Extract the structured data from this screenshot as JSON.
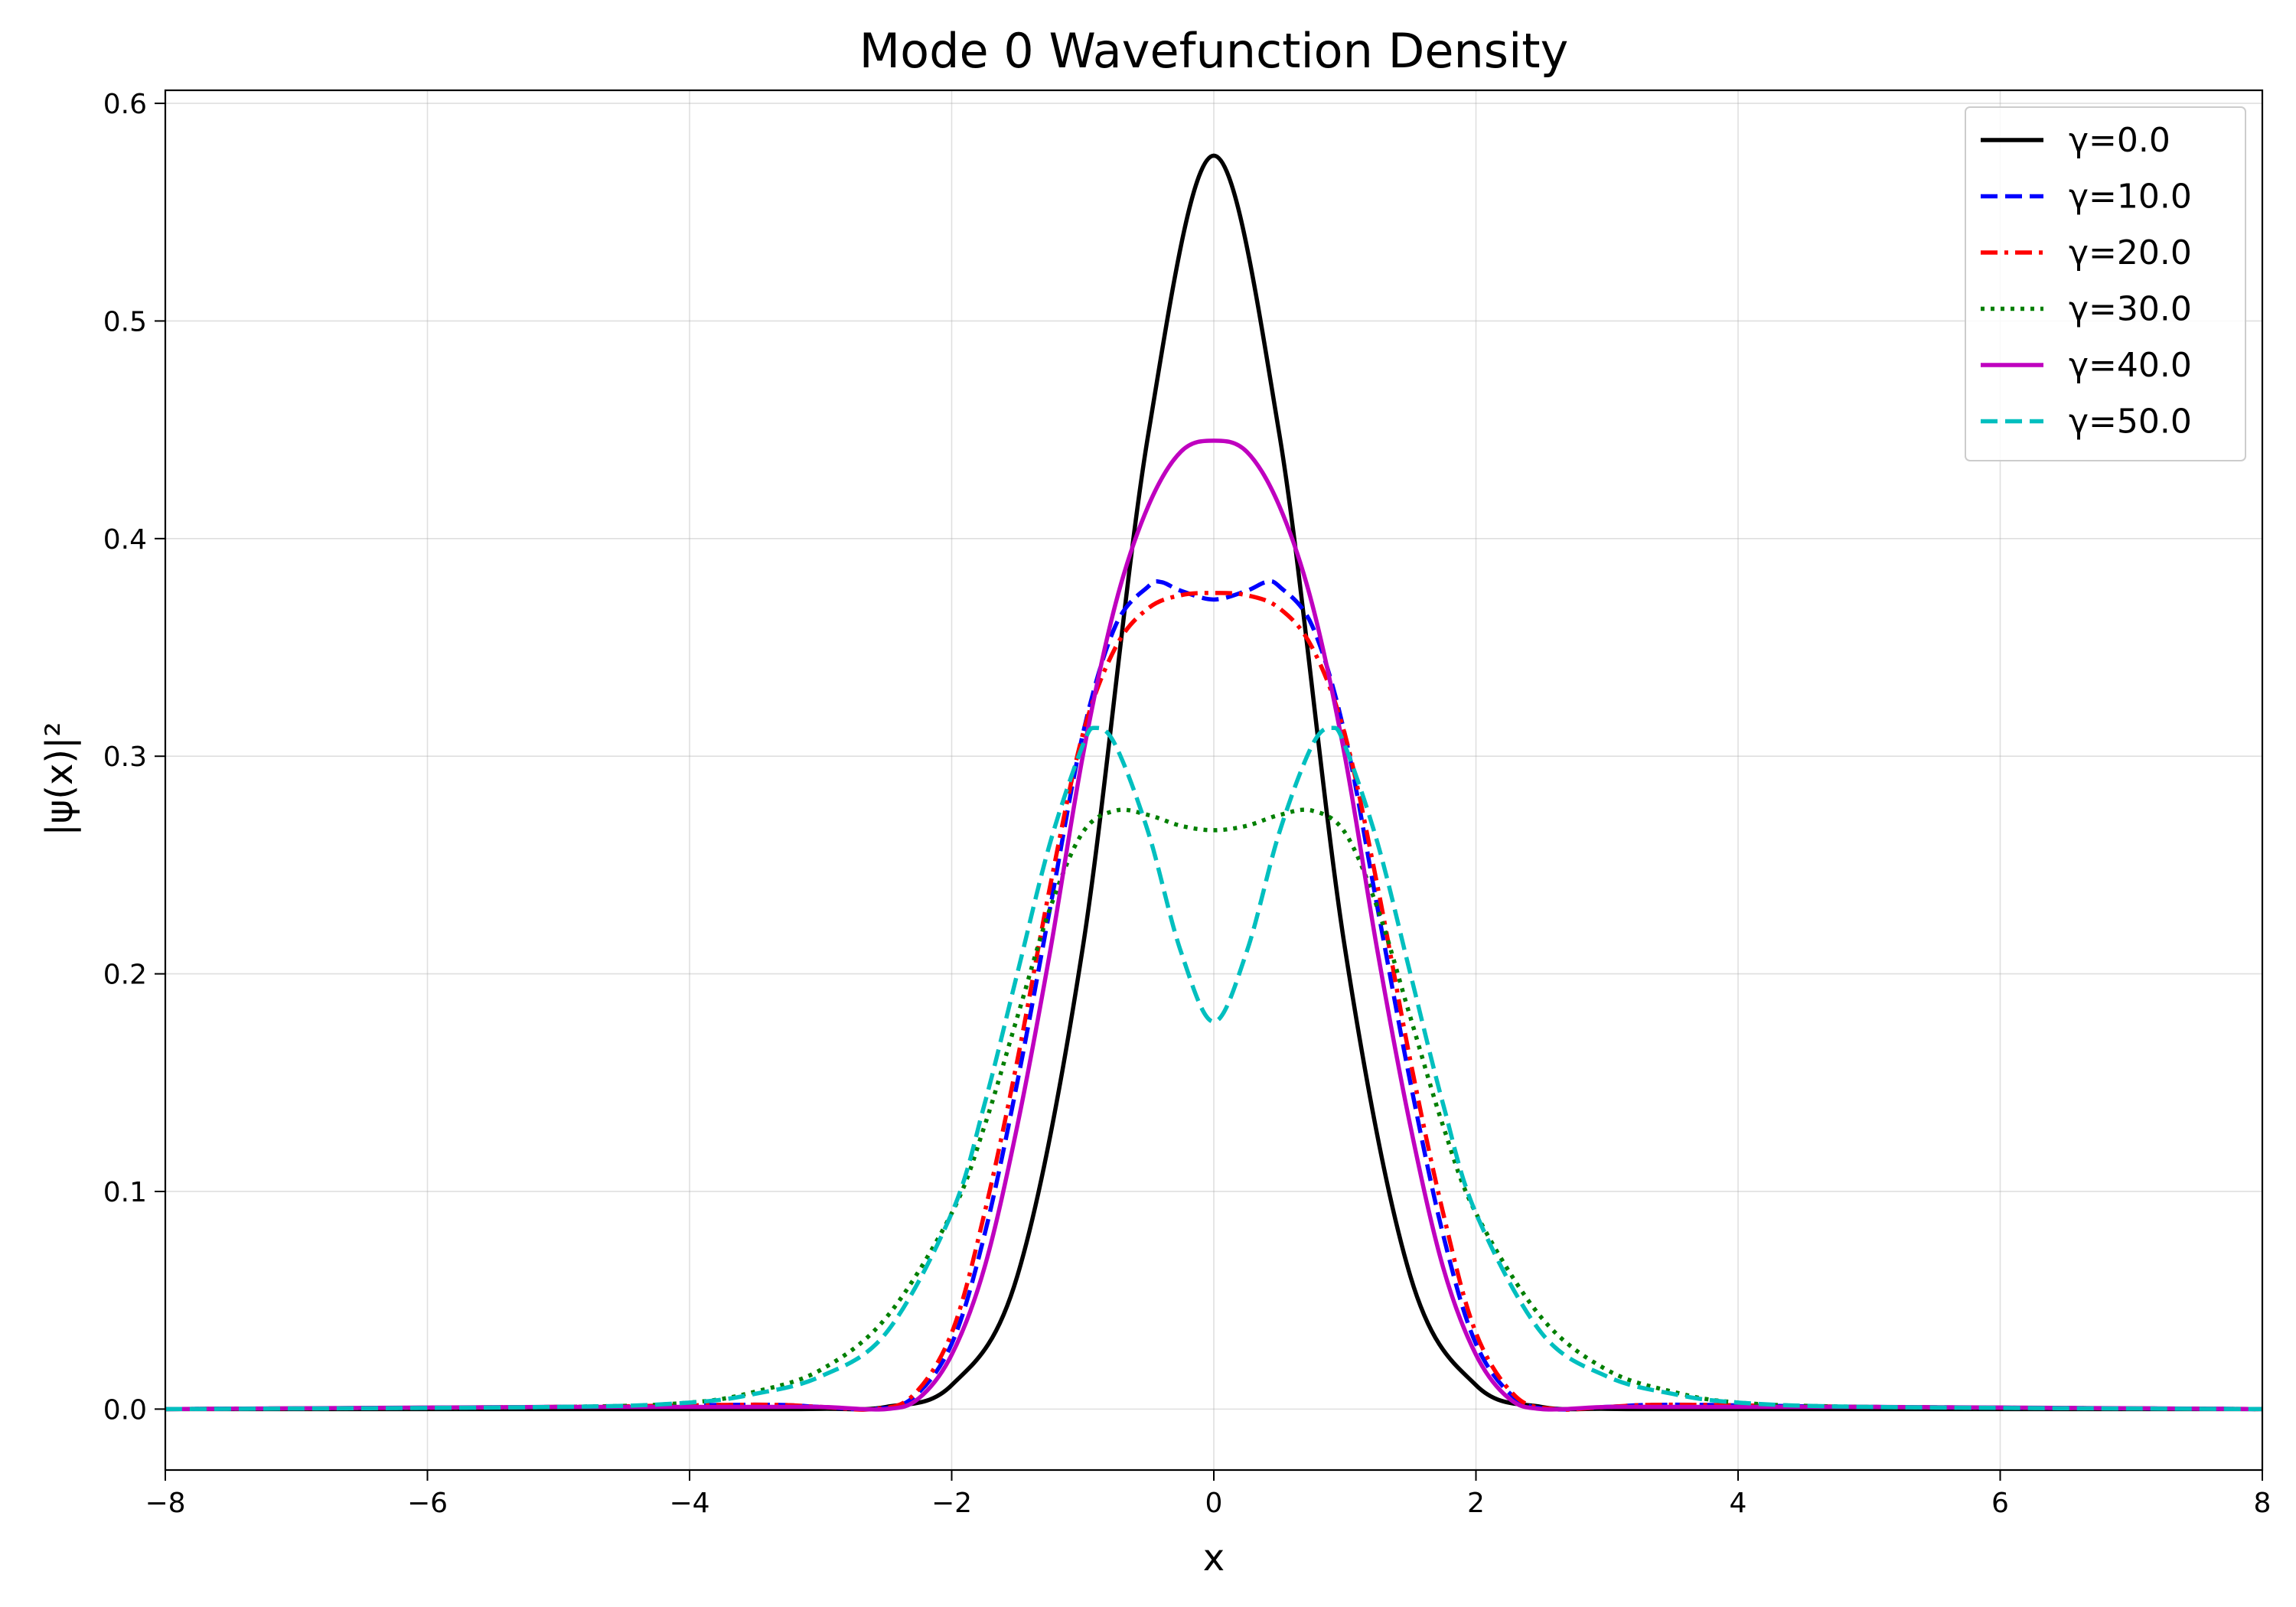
{
  "chart_data": {
    "type": "line",
    "title": "Mode 0 Wavefunction Density",
    "xlabel": "x",
    "ylabel": "|ψ(x)|²",
    "xlim": [
      -8,
      8
    ],
    "ylim": [
      -0.028,
      0.606
    ],
    "xticks": [
      -8,
      -6,
      -4,
      -2,
      0,
      2,
      4,
      6,
      8
    ],
    "yticks": [
      0.0,
      0.1,
      0.2,
      0.3,
      0.4,
      0.5,
      0.6
    ],
    "xtick_labels": [
      "−8",
      "−6",
      "−4",
      "−2",
      "0",
      "2",
      "4",
      "6",
      "8"
    ],
    "ytick_labels": [
      "0.0",
      "0.1",
      "0.2",
      "0.3",
      "0.4",
      "0.5",
      "0.6"
    ],
    "grid": true,
    "legend_position": "top-right",
    "series": [
      {
        "name": "γ=0.0",
        "color": "#000000",
        "dash": "solid",
        "x": [
          -8,
          -4,
          -3,
          -2.5,
          -2,
          -1.5,
          -1,
          -0.5,
          0,
          0.5,
          1,
          1.5,
          2,
          2.5,
          3,
          4,
          8
        ],
        "y": [
          0,
          0,
          0.0001,
          0.001,
          0.011,
          0.061,
          0.212,
          0.448,
          0.576,
          0.448,
          0.212,
          0.061,
          0.011,
          0.001,
          0.0001,
          0,
          0
        ]
      },
      {
        "name": "γ=10.0",
        "color": "#0000ff",
        "dash": "dashed",
        "x": [
          -8,
          -5,
          -3.5,
          -3,
          -2.6,
          -2.3,
          -2,
          -1.75,
          -1.5,
          -1.25,
          -1,
          -0.75,
          -0.5,
          -0.4,
          -0.25,
          0,
          0.25,
          0.4,
          0.5,
          0.75,
          1,
          1.25,
          1.5,
          1.75,
          2,
          2.3,
          2.6,
          3,
          3.5,
          5,
          8
        ],
        "y": [
          0,
          0.001,
          0.002,
          0.001,
          0,
          0.005,
          0.03,
          0.08,
          0.15,
          0.23,
          0.31,
          0.36,
          0.378,
          0.38,
          0.376,
          0.372,
          0.376,
          0.38,
          0.378,
          0.36,
          0.31,
          0.23,
          0.15,
          0.08,
          0.03,
          0.005,
          0,
          0.001,
          0.002,
          0.001,
          0
        ]
      },
      {
        "name": "γ=20.0",
        "color": "#ff0000",
        "dash": "dashdot",
        "x": [
          -8,
          -5,
          -3.5,
          -3,
          -2.6,
          -2.3,
          -2,
          -1.75,
          -1.5,
          -1.25,
          -1,
          -0.75,
          -0.5,
          -0.25,
          0,
          0.25,
          0.5,
          0.75,
          1,
          1.25,
          1.5,
          1.75,
          2,
          2.3,
          2.6,
          3,
          3.5,
          5,
          8
        ],
        "y": [
          0,
          0.001,
          0.002,
          0.001,
          0,
          0.006,
          0.035,
          0.09,
          0.16,
          0.24,
          0.31,
          0.35,
          0.368,
          0.374,
          0.375,
          0.374,
          0.368,
          0.35,
          0.31,
          0.24,
          0.16,
          0.09,
          0.035,
          0.006,
          0,
          0.001,
          0.002,
          0.001,
          0
        ]
      },
      {
        "name": "γ=30.0",
        "color": "#007f00",
        "dash": "dotted",
        "x": [
          -8,
          -5,
          -4,
          -3.5,
          -3,
          -2.5,
          -2,
          -1.75,
          -1.5,
          -1.25,
          -1,
          -0.75,
          -0.5,
          -0.25,
          0,
          0.25,
          0.5,
          0.75,
          1,
          1.25,
          1.5,
          1.75,
          2,
          2.5,
          3,
          3.5,
          4,
          5,
          8
        ],
        "y": [
          0,
          0.001,
          0.003,
          0.008,
          0.018,
          0.042,
          0.09,
          0.13,
          0.18,
          0.23,
          0.265,
          0.275,
          0.273,
          0.268,
          0.266,
          0.268,
          0.273,
          0.275,
          0.265,
          0.23,
          0.18,
          0.13,
          0.09,
          0.042,
          0.018,
          0.008,
          0.003,
          0.001,
          0
        ]
      },
      {
        "name": "γ=40.0",
        "color": "#bf00bf",
        "dash": "solid",
        "x": [
          -8,
          -5,
          -3.5,
          -3,
          -2.5,
          -2.25,
          -2,
          -1.75,
          -1.5,
          -1.25,
          -1,
          -0.75,
          -0.5,
          -0.25,
          0,
          0.25,
          0.5,
          0.75,
          1,
          1.25,
          1.5,
          1.75,
          2,
          2.25,
          2.5,
          3,
          3.5,
          5,
          8
        ],
        "y": [
          0,
          0.001,
          0.001,
          0.001,
          0,
          0.005,
          0.025,
          0.065,
          0.13,
          0.21,
          0.3,
          0.37,
          0.415,
          0.44,
          0.445,
          0.44,
          0.415,
          0.37,
          0.3,
          0.21,
          0.13,
          0.065,
          0.025,
          0.005,
          0,
          0.001,
          0.001,
          0.001,
          0
        ]
      },
      {
        "name": "γ=50.0",
        "color": "#00bfbf",
        "dash": "dashed",
        "x": [
          -8,
          -5,
          -4,
          -3.5,
          -3,
          -2.5,
          -2,
          -1.75,
          -1.5,
          -1.25,
          -1,
          -0.9,
          -0.75,
          -0.5,
          -0.25,
          0,
          0.25,
          0.5,
          0.75,
          0.9,
          1,
          1.25,
          1.5,
          1.75,
          2,
          2.5,
          3,
          3.5,
          4,
          5,
          8
        ],
        "y": [
          0,
          0.001,
          0.003,
          0.007,
          0.015,
          0.035,
          0.09,
          0.14,
          0.2,
          0.26,
          0.305,
          0.313,
          0.305,
          0.265,
          0.21,
          0.178,
          0.21,
          0.265,
          0.305,
          0.313,
          0.305,
          0.26,
          0.2,
          0.14,
          0.09,
          0.035,
          0.015,
          0.007,
          0.003,
          0.001,
          0
        ]
      }
    ]
  }
}
